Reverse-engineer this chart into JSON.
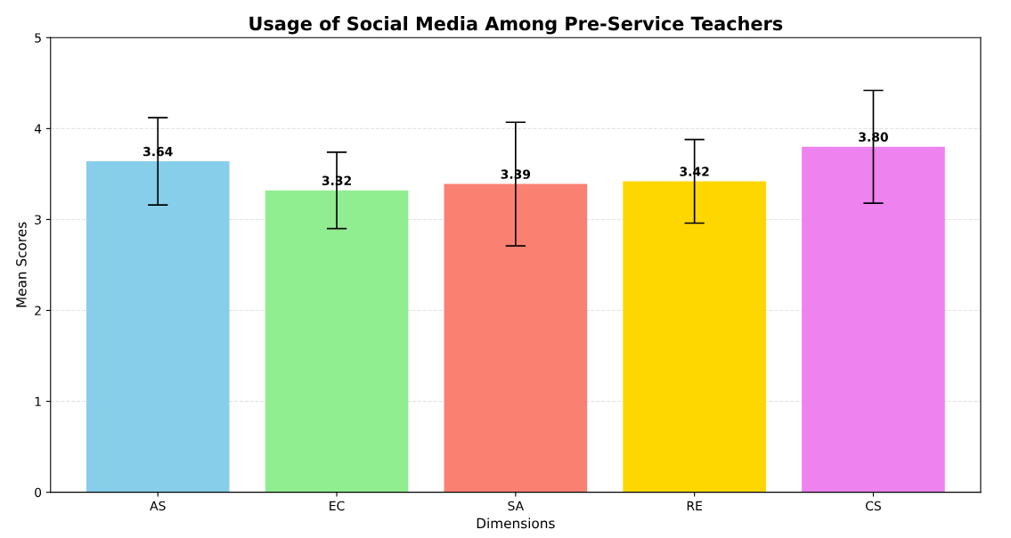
{
  "chart_data": {
    "type": "bar",
    "title": "Usage of Social Media Among Pre-Service Teachers",
    "xlabel": "Dimensions",
    "ylabel": "Mean Scores",
    "categories": [
      "AS",
      "EC",
      "SA",
      "RE",
      "CS"
    ],
    "values": [
      3.64,
      3.32,
      3.39,
      3.42,
      3.8
    ],
    "colors": [
      "#87ceeb",
      "#90ee90",
      "#fa8072",
      "#ffd700",
      "#ee82ee"
    ],
    "errors": [
      0.48,
      0.42,
      0.68,
      0.46,
      0.62
    ],
    "value_labels": [
      "3.64",
      "3.32",
      "3.39",
      "3.42",
      "3.80"
    ],
    "ylim": [
      0,
      5
    ],
    "yticks": [
      0,
      1,
      2,
      3,
      4,
      5
    ],
    "grid": "y"
  }
}
